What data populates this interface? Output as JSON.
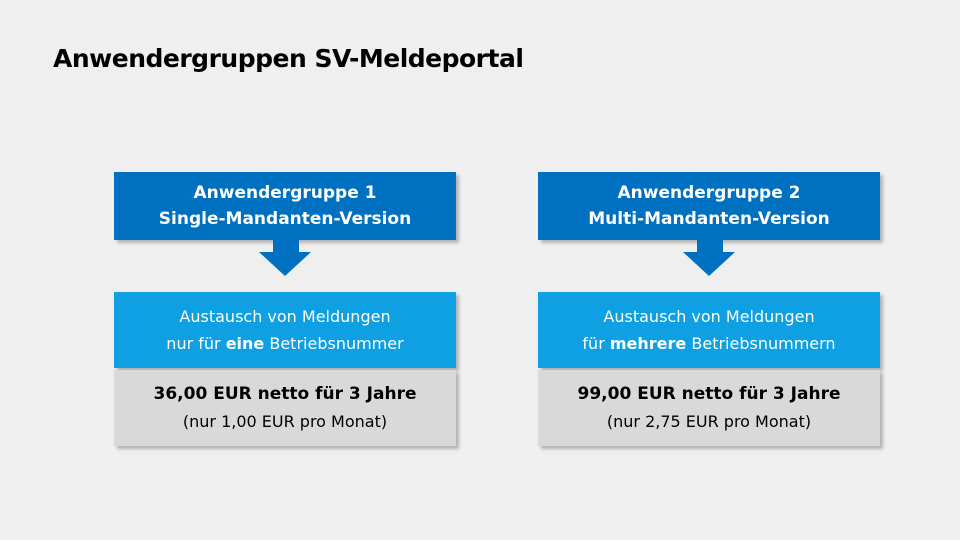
{
  "title": "Anwendergruppen SV-Meldeportal",
  "colors": {
    "dark_blue": "#0070c0",
    "light_blue": "#0ea0e2",
    "gray": "#d9d9d9"
  },
  "groups": [
    {
      "name": "Anwendergruppe 1",
      "version": "Single-Mandanten-Version",
      "desc_line1": "Austausch von Meldungen",
      "desc_pre": "nur für",
      "desc_bold": "eine",
      "desc_post": "Betriebsnummer",
      "price": "36,00 EUR netto für 3 Jahre",
      "monthly": "(nur 1,00 EUR pro Monat)"
    },
    {
      "name": "Anwendergruppe 2",
      "version": "Multi-Mandanten-Version",
      "desc_line1": "Austausch von Meldungen",
      "desc_pre": "für",
      "desc_bold": "mehrere",
      "desc_post": "Betriebsnummern",
      "price": "99,00 EUR netto für 3 Jahre",
      "monthly": "(nur 2,75 EUR pro Monat)"
    }
  ]
}
